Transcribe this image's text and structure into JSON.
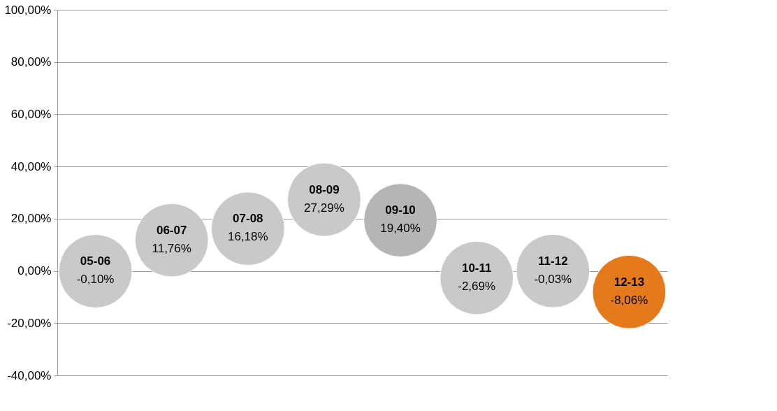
{
  "chart_data": {
    "type": "bubble",
    "categories": [
      "05-06",
      "06-07",
      "07-08",
      "08-09",
      "09-10",
      "10-11",
      "11-12",
      "12-13"
    ],
    "values": [
      -0.1,
      11.76,
      16.18,
      27.29,
      19.4,
      -2.69,
      -0.03,
      -8.06
    ],
    "sizes": [
      1,
      1,
      1,
      1,
      1,
      1,
      1,
      1
    ],
    "colors": [
      "#c9c9c9",
      "#c9c9c9",
      "#c9c9c9",
      "#c9c9c9",
      "#b5b5b5",
      "#c9c9c9",
      "#c9c9c9",
      "#e57a1c"
    ],
    "value_labels": [
      "-0,10%",
      "11,76%",
      "16,18%",
      "27,29%",
      "19,40%",
      "-2,69%",
      "-0,03%",
      "-8,06%"
    ],
    "ylim": [
      -40,
      100
    ],
    "yticks": [
      {
        "value": -40,
        "label": "-40,00%"
      },
      {
        "value": -20,
        "label": "-20,00%"
      },
      {
        "value": 0,
        "label": "0,00%"
      },
      {
        "value": 20,
        "label": "20,00%"
      },
      {
        "value": 40,
        "label": "40,00%"
      },
      {
        "value": 60,
        "label": "60,00%"
      },
      {
        "value": 80,
        "label": "80,00%"
      },
      {
        "value": 100,
        "label": "100,00%"
      }
    ],
    "grid": "y",
    "tick_labels": "y"
  }
}
